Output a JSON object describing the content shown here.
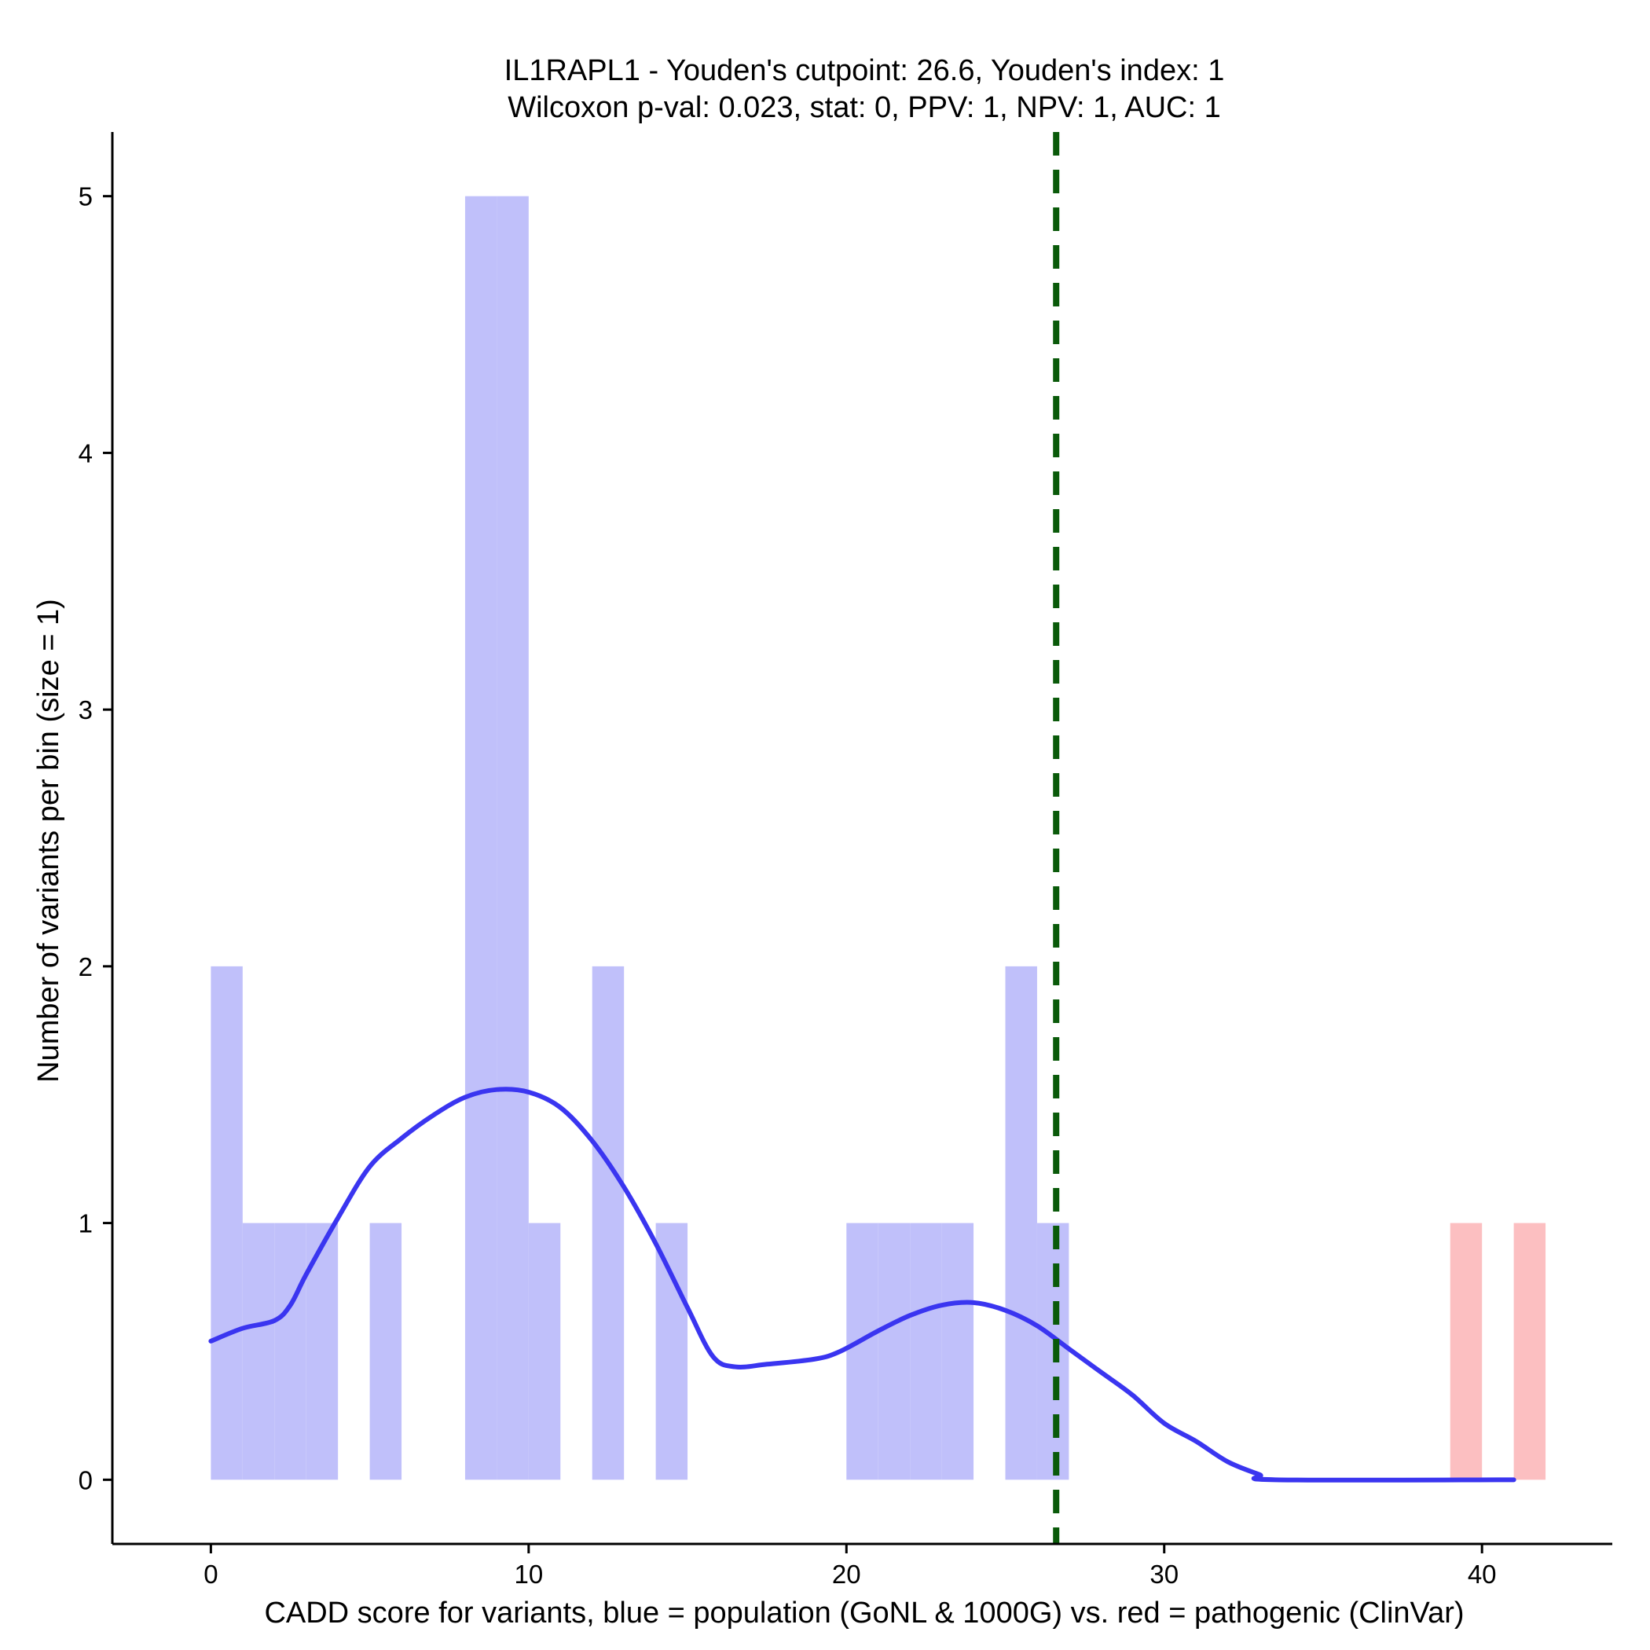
{
  "chart_data": {
    "type": "histogram",
    "title_line1": "IL1RAPL1 - Youden's cutpoint: 26.6, Youden's index: 1",
    "title_line2": "Wilcoxon p-val: 0.023, stat: 0, PPV: 1, NPV: 1, AUC: 1",
    "xlabel": "CADD score for variants, blue = population (GoNL & 1000G) vs. red = pathogenic (ClinVar)",
    "ylabel": "Number of variants per bin (size = 1)",
    "xlim": [
      -3.1,
      44.1
    ],
    "ylim": [
      -0.25,
      5.25
    ],
    "x_ticks": [
      0,
      10,
      20,
      30,
      40
    ],
    "y_ticks": [
      0,
      1,
      2,
      3,
      4,
      5
    ],
    "bin_width": 1,
    "series": [
      {
        "name": "population (GoNL & 1000G)",
        "color": "#c0c0fa",
        "bins": [
          {
            "start": 0,
            "count": 2
          },
          {
            "start": 1,
            "count": 1
          },
          {
            "start": 2,
            "count": 1
          },
          {
            "start": 3,
            "count": 1
          },
          {
            "start": 5,
            "count": 1
          },
          {
            "start": 8,
            "count": 5
          },
          {
            "start": 9,
            "count": 5
          },
          {
            "start": 10,
            "count": 1
          },
          {
            "start": 12,
            "count": 2
          },
          {
            "start": 14,
            "count": 1
          },
          {
            "start": 20,
            "count": 1
          },
          {
            "start": 21,
            "count": 1
          },
          {
            "start": 22,
            "count": 1
          },
          {
            "start": 23,
            "count": 1
          },
          {
            "start": 25,
            "count": 2
          },
          {
            "start": 26,
            "count": 1
          }
        ]
      },
      {
        "name": "pathogenic (ClinVar)",
        "color": "#fcbfc1",
        "bins": [
          {
            "start": 39,
            "count": 1
          },
          {
            "start": 41,
            "count": 1
          }
        ]
      }
    ],
    "density": {
      "color": "#3a35f0",
      "points": [
        [
          0,
          0.54
        ],
        [
          1,
          0.59
        ],
        [
          2,
          0.62
        ],
        [
          2.5,
          0.68
        ],
        [
          3,
          0.8
        ],
        [
          4,
          1.02
        ],
        [
          5,
          1.22
        ],
        [
          6,
          1.33
        ],
        [
          7,
          1.42
        ],
        [
          8,
          1.49
        ],
        [
          9,
          1.52
        ],
        [
          10,
          1.51
        ],
        [
          11,
          1.45
        ],
        [
          12,
          1.32
        ],
        [
          13,
          1.14
        ],
        [
          14,
          0.92
        ],
        [
          15,
          0.67
        ],
        [
          15.8,
          0.48
        ],
        [
          16.5,
          0.44
        ],
        [
          17.5,
          0.45
        ],
        [
          19,
          0.47
        ],
        [
          19.8,
          0.5
        ],
        [
          21,
          0.58
        ],
        [
          22,
          0.64
        ],
        [
          23,
          0.68
        ],
        [
          24,
          0.69
        ],
        [
          25,
          0.66
        ],
        [
          26,
          0.6
        ],
        [
          27,
          0.51
        ],
        [
          28,
          0.42
        ],
        [
          29,
          0.33
        ],
        [
          30,
          0.22
        ],
        [
          31,
          0.15
        ],
        [
          32,
          0.07
        ],
        [
          33,
          0.02
        ],
        [
          33.5,
          0.0
        ],
        [
          41,
          0.0
        ]
      ]
    },
    "cutpoint": {
      "value": 26.6,
      "color": "#0a5a0a"
    },
    "grid": false,
    "legend": "none"
  }
}
